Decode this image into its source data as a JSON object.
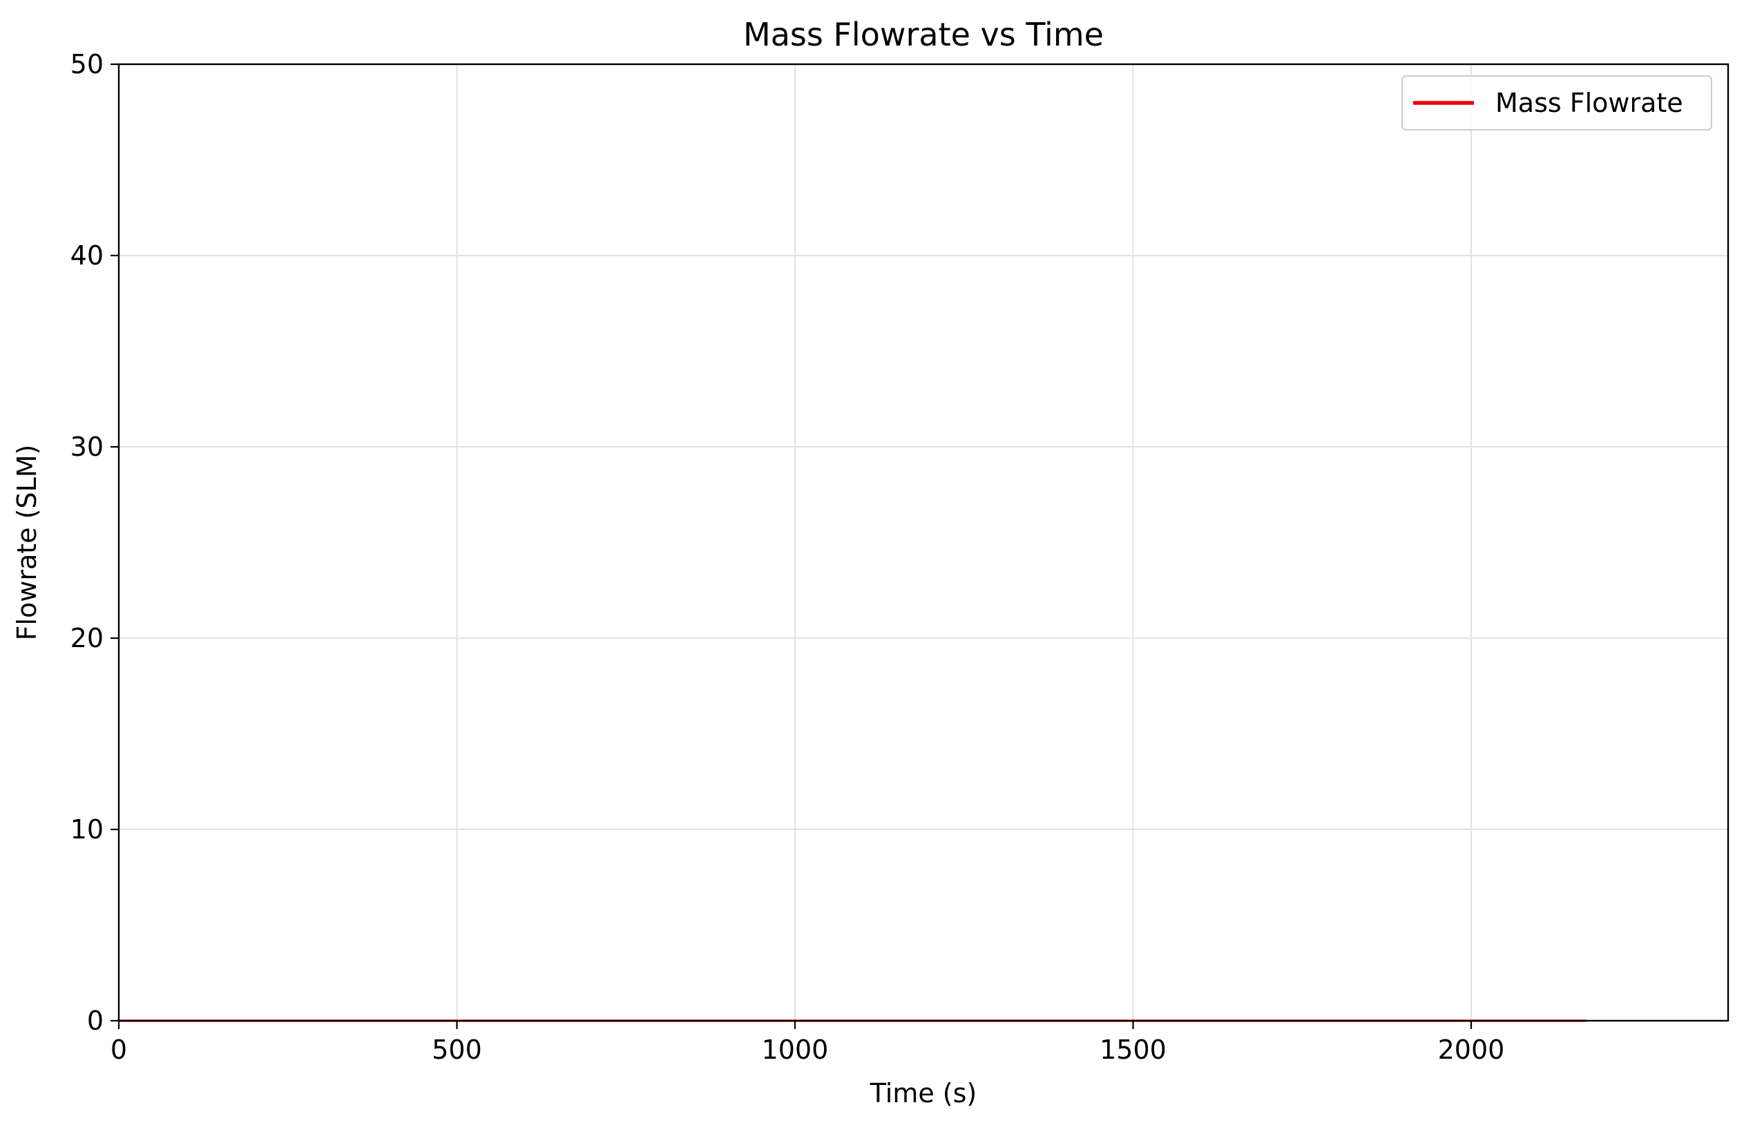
{
  "chart_data": {
    "type": "line",
    "title": "Mass Flowrate vs Time",
    "xlabel": "Time (s)",
    "ylabel": "Flowrate (SLM)",
    "xlim": [
      0,
      2380
    ],
    "ylim": [
      0,
      50
    ],
    "xticks": [
      0,
      500,
      1000,
      1500,
      2000
    ],
    "yticks": [
      0,
      10,
      20,
      30,
      40,
      50
    ],
    "grid": true,
    "legend_position": "top-right",
    "series": [
      {
        "name": "Mass Flowrate",
        "color": "#ee0000",
        "x": [
          0,
          2170
        ],
        "y": [
          0.0,
          0.0
        ]
      }
    ]
  }
}
